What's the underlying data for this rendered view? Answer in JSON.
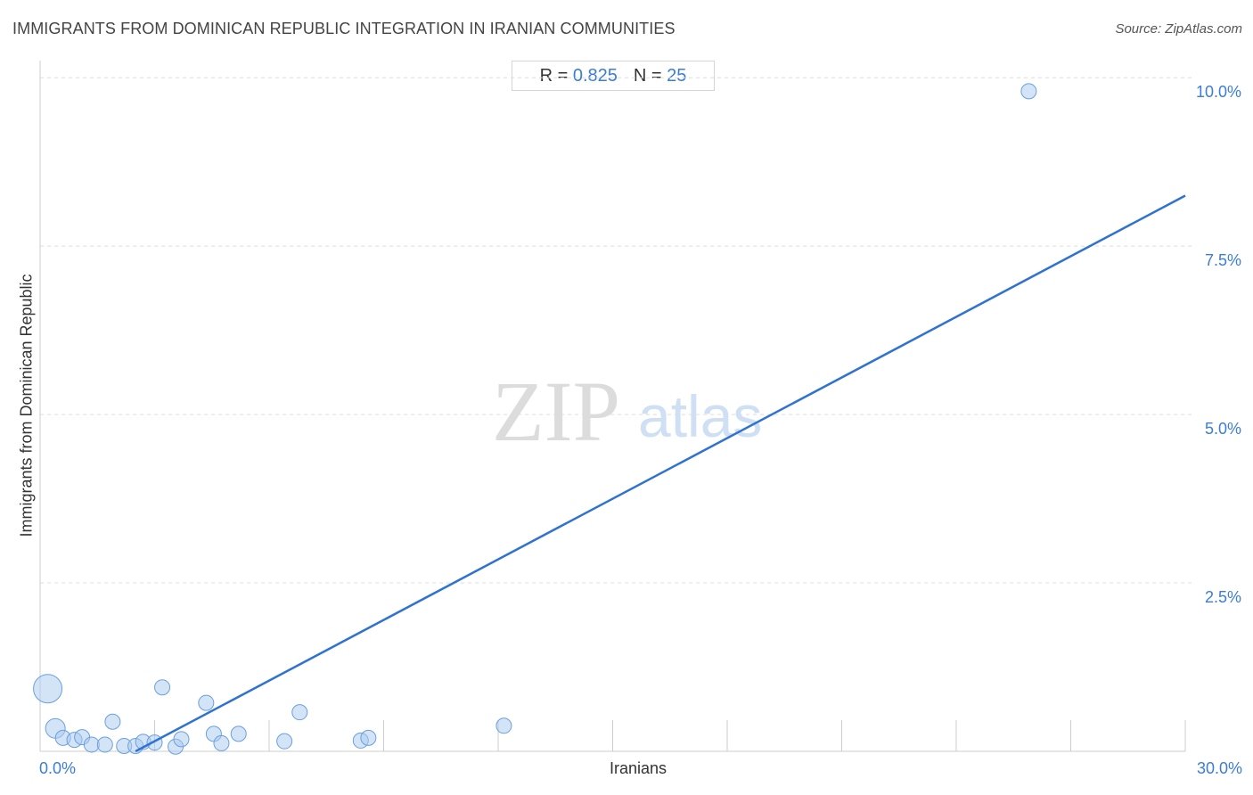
{
  "header": {
    "title": "IMMIGRANTS FROM DOMINICAN REPUBLIC INTEGRATION IN IRANIAN COMMUNITIES",
    "source": "Source: ZipAtlas.com"
  },
  "stats": {
    "r_label": "R = ",
    "r_value": "0.825",
    "n_label": "N = ",
    "n_value": "25"
  },
  "watermark": {
    "zip": "ZIP",
    "atlas": "atlas"
  },
  "colors": {
    "accent": "#3b7dd8",
    "point_fill": "#a9c9f0",
    "point_stroke": "#6a9fe0",
    "trend_line": "#2f72d2",
    "grid": "#dddddd"
  },
  "chart_data": {
    "type": "scatter",
    "xlabel": "Iranians",
    "ylabel": "Immigrants from Dominican Republic",
    "xlim": [
      0,
      30
    ],
    "ylim": [
      0,
      10.4
    ],
    "x_tick_labels": [
      "0.0%",
      "30.0%"
    ],
    "y_ticks": [
      2.5,
      5.0,
      7.5,
      10.0
    ],
    "y_tick_labels": [
      "2.5%",
      "5.0%",
      "7.5%",
      "10.0%"
    ],
    "grid": "horizontal dashed",
    "points": [
      {
        "x": 0.2,
        "y": 0.93,
        "size": 3
      },
      {
        "x": 0.4,
        "y": 0.34,
        "size": 2
      },
      {
        "x": 0.6,
        "y": 0.2,
        "size": 1
      },
      {
        "x": 0.9,
        "y": 0.17,
        "size": 1
      },
      {
        "x": 1.1,
        "y": 0.21,
        "size": 1
      },
      {
        "x": 1.35,
        "y": 0.1,
        "size": 1
      },
      {
        "x": 1.7,
        "y": 0.1,
        "size": 1
      },
      {
        "x": 1.9,
        "y": 0.44,
        "size": 1
      },
      {
        "x": 2.2,
        "y": 0.08,
        "size": 1
      },
      {
        "x": 2.5,
        "y": 0.08,
        "size": 1
      },
      {
        "x": 2.7,
        "y": 0.14,
        "size": 1
      },
      {
        "x": 3.0,
        "y": 0.13,
        "size": 1
      },
      {
        "x": 3.2,
        "y": 0.95,
        "size": 1
      },
      {
        "x": 3.55,
        "y": 0.07,
        "size": 1
      },
      {
        "x": 3.7,
        "y": 0.18,
        "size": 1
      },
      {
        "x": 4.35,
        "y": 0.72,
        "size": 1
      },
      {
        "x": 4.55,
        "y": 0.26,
        "size": 1
      },
      {
        "x": 4.75,
        "y": 0.12,
        "size": 1
      },
      {
        "x": 5.2,
        "y": 0.26,
        "size": 1
      },
      {
        "x": 6.4,
        "y": 0.15,
        "size": 1
      },
      {
        "x": 6.8,
        "y": 0.58,
        "size": 1
      },
      {
        "x": 8.4,
        "y": 0.16,
        "size": 1
      },
      {
        "x": 8.6,
        "y": 0.2,
        "size": 1
      },
      {
        "x": 12.15,
        "y": 0.38,
        "size": 1
      },
      {
        "x": 25.9,
        "y": 9.8,
        "size": 1
      }
    ],
    "trend_line": {
      "x": [
        2.5,
        30
      ],
      "y": [
        0.0,
        8.25
      ]
    }
  }
}
